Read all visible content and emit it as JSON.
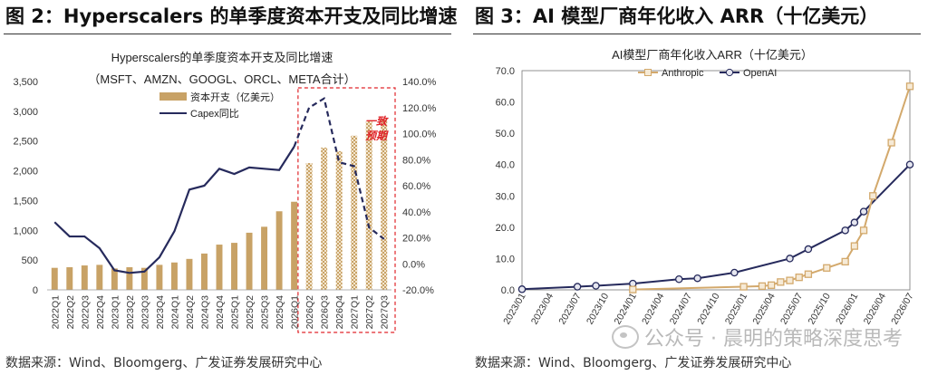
{
  "left": {
    "figure_title": "图 2：Hyperscalers 的单季度资本开支及同比增速",
    "source": "数据来源：Wind、Bloomgerg、广发证券发展研究中心",
    "annotation": "一致预期"
  },
  "right": {
    "figure_title": "图 3：AI 模型厂商年化收入 ARR（十亿美元）",
    "source": "数据来源：Wind、Bloomgerg、广发证券发展研究中心"
  },
  "watermark": "公众号 · 晨明的策略深度思考",
  "colors": {
    "bar": "#c8a266",
    "line": "#262a5c",
    "forecast_box": "#e0252a",
    "anthropic": "#d3a96c",
    "openai": "#262a5c"
  },
  "chart_data": [
    {
      "type": "bar",
      "title": "Hyperscalers的单季度资本开支及同比增速",
      "subtitle": "（MSFT、AMZN、GOOGL、ORCL、META合计）",
      "categories": [
        "2022Q1",
        "2022Q2",
        "2022Q3",
        "2022Q4",
        "2023Q1",
        "2023Q2",
        "2023Q3",
        "2023Q4",
        "2024Q1",
        "2024Q2",
        "2024Q3",
        "2024Q4",
        "2025Q1",
        "2025Q2",
        "2025Q3",
        "2025Q4",
        "2026Q1",
        "2026Q2",
        "2026Q3",
        "2026Q4",
        "2027Q1",
        "2027Q2",
        "2027Q3"
      ],
      "forecast_start": "2026Q2",
      "series": [
        {
          "name": "资本开支（亿美元）",
          "axis": "left",
          "type": "bar",
          "values": [
            370,
            380,
            410,
            420,
            360,
            380,
            370,
            420,
            460,
            520,
            610,
            760,
            790,
            960,
            1060,
            1320,
            1480,
            2130,
            2390,
            2330,
            2590,
            2830,
            2870
          ]
        },
        {
          "name": "Capex同比",
          "axis": "right",
          "type": "line",
          "unit": "%",
          "values": [
            32,
            21,
            21,
            12,
            -5,
            -7,
            -6,
            5,
            25,
            57,
            60,
            73,
            69,
            74,
            73,
            72,
            90,
            120,
            127,
            78,
            75,
            28,
            19
          ]
        }
      ],
      "y_left": {
        "lim": [
          0,
          3500
        ],
        "ticks": [
          "0",
          "500",
          "1,000",
          "1,500",
          "2,000",
          "2,500",
          "3,000",
          "3,500"
        ]
      },
      "y_right": {
        "lim": [
          -20,
          140
        ],
        "ticks": [
          "-20.0%",
          "0.0%",
          "20.0%",
          "40.0%",
          "60.0%",
          "80.0%",
          "100.0%",
          "120.0%",
          "140.0%"
        ]
      },
      "legend_position": "top-left"
    },
    {
      "type": "line",
      "title": "AI模型厂商年化收入ARR（十亿美元）",
      "x_tick_labels": [
        "2023/01",
        "2023/04",
        "2023/07",
        "2023/10",
        "2024/01",
        "2024/04",
        "2024/07",
        "2024/10",
        "2025/01",
        "2025/04",
        "2025/07",
        "2025/10",
        "2026/01",
        "2026/04",
        "2026/07"
      ],
      "y_ticks": [
        "0.0",
        "10.0",
        "20.0",
        "30.0",
        "40.0",
        "50.0",
        "60.0",
        "70.0"
      ],
      "ylim": [
        0,
        70
      ],
      "series": [
        {
          "name": "Anthropic",
          "marker": "square",
          "x": [
            "2024/01",
            "2025/01",
            "2025/03",
            "2025/04",
            "2025/05",
            "2025/06",
            "2025/07",
            "2025/08",
            "2025/10",
            "2025/12",
            "2026/01",
            "2026/02",
            "2026/03",
            "2026/05",
            "2026/07"
          ],
          "y": [
            0.1,
            1.0,
            1.2,
            1.5,
            2.5,
            3.0,
            4.0,
            5.0,
            7.0,
            9.0,
            14.0,
            19.0,
            30.0,
            47.0,
            65.0
          ]
        },
        {
          "name": "OpenAI",
          "marker": "circle",
          "x": [
            "2023/01",
            "2023/07",
            "2023/09",
            "2024/01",
            "2024/06",
            "2024/08",
            "2024/12",
            "2025/06",
            "2025/08",
            "2025/12",
            "2026/01",
            "2026/02",
            "2026/07"
          ],
          "y": [
            0.2,
            1.0,
            1.3,
            2.0,
            3.4,
            3.7,
            5.5,
            10.0,
            13.0,
            19.0,
            21.5,
            25.0,
            40.0
          ]
        }
      ],
      "legend_position": "top-center",
      "grid": "none"
    }
  ]
}
